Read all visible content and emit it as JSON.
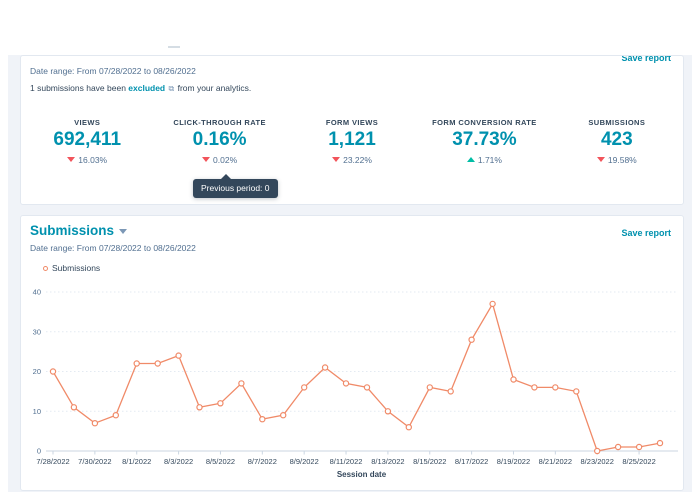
{
  "top_card": {
    "save_report_label": "Save report",
    "date_range": "Date range: From 07/28/2022 to 08/26/2022",
    "excluded_note": {
      "prefix": "1 submissions have been ",
      "link": "excluded",
      "icon": "⧉",
      "suffix": " from your analytics."
    },
    "kpis": [
      {
        "label": "VIEWS",
        "value": "692,411",
        "delta": "16.03%",
        "direction": "down"
      },
      {
        "label": "CLICK-THROUGH RATE",
        "value": "0.16%",
        "delta": "0.02%",
        "direction": "down"
      },
      {
        "label": "FORM VIEWS",
        "value": "1,121",
        "delta": "23.22%",
        "direction": "down"
      },
      {
        "label": "FORM CONVERSION RATE",
        "value": "37.73%",
        "delta": "1.71%",
        "direction": "up"
      },
      {
        "label": "SUBMISSIONS",
        "value": "423",
        "delta": "19.58%",
        "direction": "down"
      }
    ],
    "tooltip": "Previous period: 0"
  },
  "chart_card": {
    "title": "Submissions",
    "save_report_label": "Save report",
    "date_range": "Date range: From 07/28/2022 to 08/26/2022",
    "legend_label": "Submissions"
  },
  "chart_data": {
    "type": "line",
    "title": "Submissions",
    "xlabel": "Session date",
    "ylabel": "",
    "ylim": [
      0,
      40
    ],
    "yticks": [
      0,
      10,
      20,
      30,
      40
    ],
    "grid": true,
    "legend_position": "top-left",
    "x": [
      "7/28/2022",
      "7/29/2022",
      "7/30/2022",
      "7/31/2022",
      "8/1/2022",
      "8/2/2022",
      "8/3/2022",
      "8/4/2022",
      "8/5/2022",
      "8/6/2022",
      "8/7/2022",
      "8/8/2022",
      "8/9/2022",
      "8/10/2022",
      "8/11/2022",
      "8/12/2022",
      "8/13/2022",
      "8/14/2022",
      "8/15/2022",
      "8/16/2022",
      "8/17/2022",
      "8/18/2022",
      "8/19/2022",
      "8/20/2022",
      "8/21/2022",
      "8/22/2022",
      "8/23/2022",
      "8/24/2022",
      "8/25/2022",
      "8/26/2022"
    ],
    "x_tick_every": 2,
    "series": [
      {
        "name": "Submissions",
        "values": [
          20,
          11,
          7,
          9,
          22,
          22,
          24,
          11,
          12,
          17,
          8,
          9,
          16,
          21,
          17,
          16,
          10,
          6,
          16,
          15,
          28,
          37,
          18,
          16,
          16,
          15,
          0,
          1,
          1,
          2
        ]
      }
    ]
  },
  "colors": {
    "accent_teal": "#0091ae",
    "line_coral": "#f08a68",
    "delta_down_red": "#f2545b",
    "delta_up_green": "#00bda5",
    "tooltip_bg": "#33475b",
    "grid_line": "#e3eaf2",
    "axis_line": "#cbd6e2",
    "axis_text": "#33475b",
    "muted_text": "#516f90",
    "page_bg": "#f0f3f8"
  }
}
